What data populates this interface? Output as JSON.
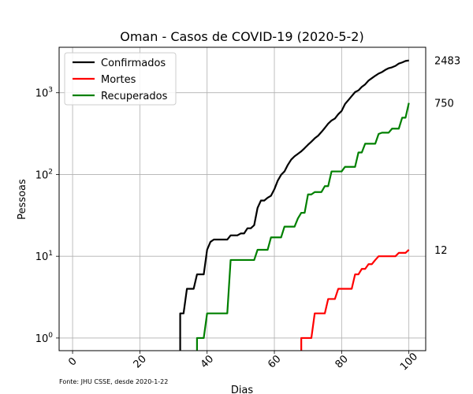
{
  "chart_data": {
    "type": "line",
    "title": "Oman - Casos de COVID-19 (2020-5-2)",
    "xlabel": "Dias",
    "ylabel": "Pessoas",
    "yscale": "log",
    "xlim": [
      -4,
      105
    ],
    "ylim": [
      0.7,
      3600
    ],
    "xticks": [
      0,
      20,
      40,
      60,
      80,
      100
    ],
    "yticks": [
      {
        "value": 1,
        "base": "10",
        "exp": "0"
      },
      {
        "value": 10,
        "base": "10",
        "exp": "1"
      },
      {
        "value": 100,
        "base": "10",
        "exp": "2"
      },
      {
        "value": 1000,
        "base": "10",
        "exp": "3"
      }
    ],
    "grid": true,
    "legend_position": "top-left",
    "source_note": "Fonte: JHU CSSE, desde 2020-1-22",
    "series": [
      {
        "name": "Confirmados",
        "color": "#000000",
        "end_label": "2483",
        "points": [
          [
            32,
            0.5
          ],
          [
            32,
            2
          ],
          [
            33,
            2
          ],
          [
            34,
            4
          ],
          [
            36,
            4
          ],
          [
            37,
            6
          ],
          [
            39,
            6
          ],
          [
            40,
            12
          ],
          [
            41,
            15
          ],
          [
            42,
            16
          ],
          [
            46,
            16
          ],
          [
            47,
            18
          ],
          [
            49,
            18
          ],
          [
            50,
            19
          ],
          [
            51,
            19
          ],
          [
            52,
            22
          ],
          [
            53,
            22
          ],
          [
            54,
            24
          ],
          [
            55,
            39
          ],
          [
            56,
            48
          ],
          [
            57,
            48
          ],
          [
            58,
            52
          ],
          [
            59,
            55
          ],
          [
            60,
            66
          ],
          [
            61,
            84
          ],
          [
            62,
            99
          ],
          [
            63,
            109
          ],
          [
            64,
            131
          ],
          [
            65,
            152
          ],
          [
            66,
            167
          ],
          [
            67,
            179
          ],
          [
            68,
            192
          ],
          [
            69,
            210
          ],
          [
            70,
            231
          ],
          [
            71,
            252
          ],
          [
            72,
            277
          ],
          [
            73,
            298
          ],
          [
            74,
            331
          ],
          [
            75,
            371
          ],
          [
            76,
            419
          ],
          [
            77,
            457
          ],
          [
            78,
            484
          ],
          [
            79,
            546
          ],
          [
            80,
            599
          ],
          [
            81,
            727
          ],
          [
            82,
            813
          ],
          [
            83,
            910
          ],
          [
            84,
            1019
          ],
          [
            85,
            1069
          ],
          [
            86,
            1180
          ],
          [
            87,
            1266
          ],
          [
            88,
            1410
          ],
          [
            89,
            1508
          ],
          [
            90,
            1614
          ],
          [
            91,
            1716
          ],
          [
            92,
            1790
          ],
          [
            93,
            1905
          ],
          [
            94,
            1998
          ],
          [
            95,
            2049
          ],
          [
            96,
            2131
          ],
          [
            97,
            2274
          ],
          [
            98,
            2348
          ],
          [
            99,
            2447
          ],
          [
            100,
            2483
          ]
        ]
      },
      {
        "name": "Mortes",
        "color": "#ff0000",
        "end_label": "12",
        "points": [
          [
            68,
            0.5
          ],
          [
            68,
            1
          ],
          [
            71,
            1
          ],
          [
            72,
            2
          ],
          [
            75,
            2
          ],
          [
            76,
            3
          ],
          [
            78,
            3
          ],
          [
            79,
            4
          ],
          [
            83,
            4
          ],
          [
            84,
            6
          ],
          [
            85,
            6
          ],
          [
            86,
            7
          ],
          [
            87,
            7
          ],
          [
            88,
            8
          ],
          [
            89,
            8
          ],
          [
            90,
            9
          ],
          [
            91,
            10
          ],
          [
            96,
            10
          ],
          [
            97,
            11
          ],
          [
            99,
            11
          ],
          [
            100,
            12
          ]
        ]
      },
      {
        "name": "Recuperados",
        "color": "#008000",
        "end_label": "750",
        "points": [
          [
            37,
            0.5
          ],
          [
            37,
            1
          ],
          [
            39,
            1
          ],
          [
            40,
            2
          ],
          [
            46,
            2
          ],
          [
            47,
            9
          ],
          [
            54,
            9
          ],
          [
            55,
            12
          ],
          [
            58,
            12
          ],
          [
            59,
            17
          ],
          [
            62,
            17
          ],
          [
            63,
            23
          ],
          [
            66,
            23
          ],
          [
            67,
            29
          ],
          [
            68,
            34
          ],
          [
            69,
            34
          ],
          [
            70,
            57
          ],
          [
            71,
            57
          ],
          [
            72,
            61
          ],
          [
            74,
            61
          ],
          [
            75,
            72
          ],
          [
            76,
            72
          ],
          [
            77,
            109
          ],
          [
            80,
            109
          ],
          [
            81,
            124
          ],
          [
            84,
            124
          ],
          [
            85,
            186
          ],
          [
            86,
            186
          ],
          [
            87,
            238
          ],
          [
            90,
            238
          ],
          [
            91,
            313
          ],
          [
            92,
            325
          ],
          [
            94,
            325
          ],
          [
            95,
            364
          ],
          [
            97,
            364
          ],
          [
            98,
            495
          ],
          [
            99,
            495
          ],
          [
            100,
            750
          ]
        ]
      }
    ]
  }
}
